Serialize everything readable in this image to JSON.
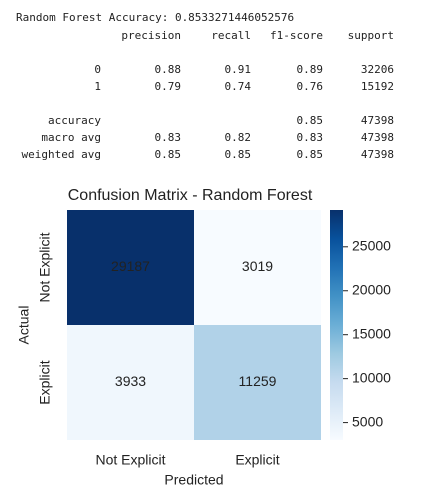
{
  "report": {
    "title": "Random Forest Accuracy: 0.8533271446052576",
    "header": [
      "precision",
      "recall",
      "f1-score",
      "support"
    ],
    "rows": [
      [
        "0",
        "0.88",
        "0.91",
        "0.89",
        "32206"
      ],
      [
        "1",
        "0.79",
        "0.74",
        "0.76",
        "15192"
      ],
      [
        "accuracy",
        null,
        null,
        "0.85",
        "47398"
      ],
      [
        "macro avg",
        "0.83",
        "0.82",
        "0.83",
        "47398"
      ],
      [
        "weighted avg",
        "0.85",
        "0.85",
        "0.85",
        "47398"
      ]
    ]
  },
  "chart_data": {
    "type": "heatmap",
    "title": "Confusion Matrix - Random Forest",
    "x_label": "Predicted",
    "y_label": "Actual",
    "x_categories": [
      "Not Explicit",
      "Explicit"
    ],
    "y_categories": [
      "Not Explicit",
      "Explicit"
    ],
    "values": [
      [
        29187,
        3019
      ],
      [
        3933,
        11259
      ]
    ],
    "colormap": [
      "#f7fbff",
      "#deebf7",
      "#c6dbef",
      "#9ecae1",
      "#6baed6",
      "#4292c6",
      "#2171b5",
      "#08519c",
      "#08306b"
    ],
    "clim": [
      3019,
      29187
    ],
    "colorbar_ticks": [
      5000,
      10000,
      15000,
      20000,
      25000
    ]
  }
}
